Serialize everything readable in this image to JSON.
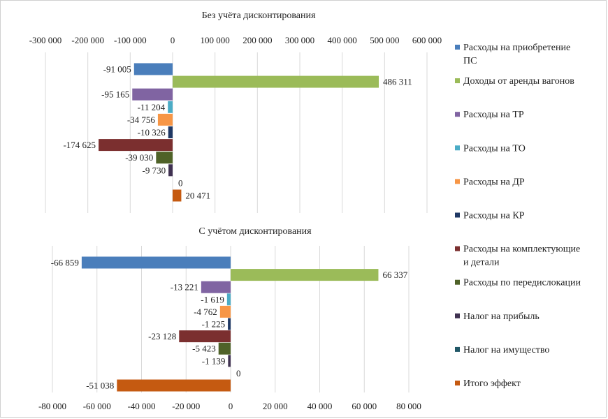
{
  "legend": [
    {
      "label": "Расходы на приобретение",
      "label2": "ПС",
      "color": "#4a7ebb"
    },
    {
      "label": "Доходы от аренды вагонов",
      "color": "#9bbb59"
    },
    {
      "label": "Расходы на ТР",
      "color": "#8064a2"
    },
    {
      "label": "Расходы на ТО",
      "color": "#4bacc6"
    },
    {
      "label": "Расходы на ДР",
      "color": "#f79646"
    },
    {
      "label": "Расходы на КР",
      "color": "#1f3864"
    },
    {
      "label": "Расходы на комплектующие",
      "label2": "и детали",
      "color": "#7b2f2f"
    },
    {
      "label": "Расходы по передислокации",
      "color": "#4f6228"
    },
    {
      "label": "Налог на прибыль",
      "color": "#3f3151"
    },
    {
      "label": "Налог на имущество",
      "color": "#215867"
    },
    {
      "label": "Итого эффект",
      "color": "#c55a11"
    }
  ],
  "chart_data": [
    {
      "type": "bar",
      "orientation": "horizontal",
      "title": "Без учёта дисконтирования",
      "xlim": [
        -300000,
        600000
      ],
      "tick_step": 100000,
      "tick_labels": [
        "-300 000",
        "-200 000",
        "-100 000",
        "0",
        "100 000",
        "200 000",
        "300 000",
        "400 000",
        "500 000",
        "600 000"
      ],
      "axis_position": "top",
      "grid": true,
      "values": [
        -91005,
        486311,
        -95165,
        -11204,
        -34756,
        -10326,
        -174625,
        -39030,
        -9730,
        0,
        20471
      ],
      "value_labels": [
        "-91 005",
        "486 311",
        "-95 165",
        "-11 204",
        "-34 756",
        "-10 326",
        "-174 625",
        "-39 030",
        "-9 730",
        "0",
        "20 471"
      ]
    },
    {
      "type": "bar",
      "orientation": "horizontal",
      "title": "С учётом дисконтирования",
      "xlim": [
        -80000,
        80000
      ],
      "tick_step": 20000,
      "tick_labels": [
        "-80 000",
        "-60 000",
        "-40 000",
        "-20 000",
        "0",
        "20 000",
        "40 000",
        "60 000",
        "80 000"
      ],
      "axis_position": "bottom",
      "grid": true,
      "values": [
        -66859,
        66337,
        -13221,
        -1619,
        -4762,
        -1225,
        -23128,
        -5423,
        -1139,
        0,
        -51038
      ],
      "value_labels": [
        "-66 859",
        "66 337",
        "-13 221",
        "-1 619",
        "-4 762",
        "-1 225",
        "-23 128",
        "-5 423",
        "-1 139",
        "0",
        "-51 038"
      ]
    }
  ]
}
